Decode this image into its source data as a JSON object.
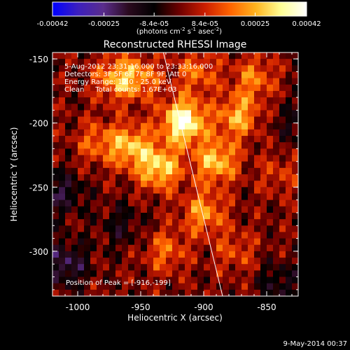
{
  "colorbar": {
    "ticks": [
      "-0.00042",
      "-0.00025",
      "-8.4e-05",
      "8.4e-05",
      "0.00025",
      "0.00042"
    ],
    "tick_values": [
      -0.00042,
      -0.00025,
      -8.4e-05,
      8.4e-05,
      0.00025,
      0.00042
    ],
    "range": [
      -0.00042,
      0.00042
    ],
    "units_main": "(photons cm",
    "units_sup1": "-2",
    "units_mid": " s",
    "units_sup2": "-1",
    "units_tail": " asec",
    "units_sup3": "-2",
    "units_close": ")",
    "colors": [
      "#0000ff",
      "#3c1fbe",
      "#5a2d8c",
      "#2a0a1e",
      "#000000",
      "#6e0000",
      "#cc1e00",
      "#ff6400",
      "#ffb41e",
      "#ffff96",
      "#ffffff"
    ]
  },
  "plot": {
    "title": "Reconstructed RHESSI Image",
    "xlabel": "Heliocentric X (arcsec)",
    "ylabel": "Heliocentric Y (arcsec)",
    "xticks": [
      "-1000",
      "-950",
      "-900",
      "-850"
    ],
    "yticks": [
      "-150",
      "-200",
      "-250",
      "-300"
    ],
    "info": [
      "5-Aug-2012 23:31:16.000 to 23:33:16.000",
      "Detectors: 3F 5F 6F 7F 8F 9F, Att 0",
      "Energy Range: 12.0 - 25.0 keV",
      "Clean     Total counts: 1.67E+03"
    ],
    "peak": "Position of Peak = [-916,-199]"
  },
  "footer": {
    "date": "9-May-2014 00:37"
  },
  "chart_data": {
    "type": "heatmap",
    "title": "Reconstructed RHESSI Image",
    "xlabel": "Heliocentric X (arcsec)",
    "ylabel": "Heliocentric Y (arcsec)",
    "xlim": [
      -1020,
      -825
    ],
    "ylim": [
      -335,
      -145
    ],
    "xticks": [
      -1000,
      -950,
      -900,
      -850
    ],
    "yticks": [
      -150,
      -200,
      -250,
      -300
    ],
    "grid": false,
    "peak_position": [
      -916,
      -199
    ],
    "limb_line": [
      [
        -932,
        -145
      ],
      [
        -885,
        -335
      ]
    ],
    "zlim": [
      -0.00042,
      0.00042
    ],
    "z_units": "photons cm-2 s-1 asec-2",
    "sources": [
      {
        "x": -916,
        "y": -199,
        "value": 0.00042
      },
      {
        "x": -935,
        "y": -235,
        "value": 0.0003
      },
      {
        "x": -958,
        "y": -218,
        "value": 0.00026
      },
      {
        "x": -970,
        "y": -165,
        "value": 0.00022
      },
      {
        "x": -890,
        "y": -230,
        "value": 0.00028
      },
      {
        "x": -873,
        "y": -195,
        "value": 0.00024
      },
      {
        "x": -900,
        "y": -270,
        "value": 0.00022
      },
      {
        "x": -860,
        "y": -165,
        "value": 0.00018
      },
      {
        "x": -930,
        "y": -300,
        "value": 0.00016
      },
      {
        "x": -985,
        "y": -215,
        "value": 0.00015
      },
      {
        "x": -950,
        "y": -165,
        "value": 0.00018
      },
      {
        "x": -905,
        "y": -160,
        "value": 0.00017
      },
      {
        "x": -875,
        "y": -300,
        "value": 0.00012
      },
      {
        "x": -840,
        "y": -240,
        "value": 0.0001
      },
      {
        "x": -1010,
        "y": -310,
        "value": -0.0002
      },
      {
        "x": -1012,
        "y": -255,
        "value": -0.00015
      },
      {
        "x": -840,
        "y": -325,
        "value": -0.00012
      },
      {
        "x": -965,
        "y": -280,
        "value": -0.0001
      },
      {
        "x": -830,
        "y": -200,
        "value": -8e-05
      }
    ]
  }
}
